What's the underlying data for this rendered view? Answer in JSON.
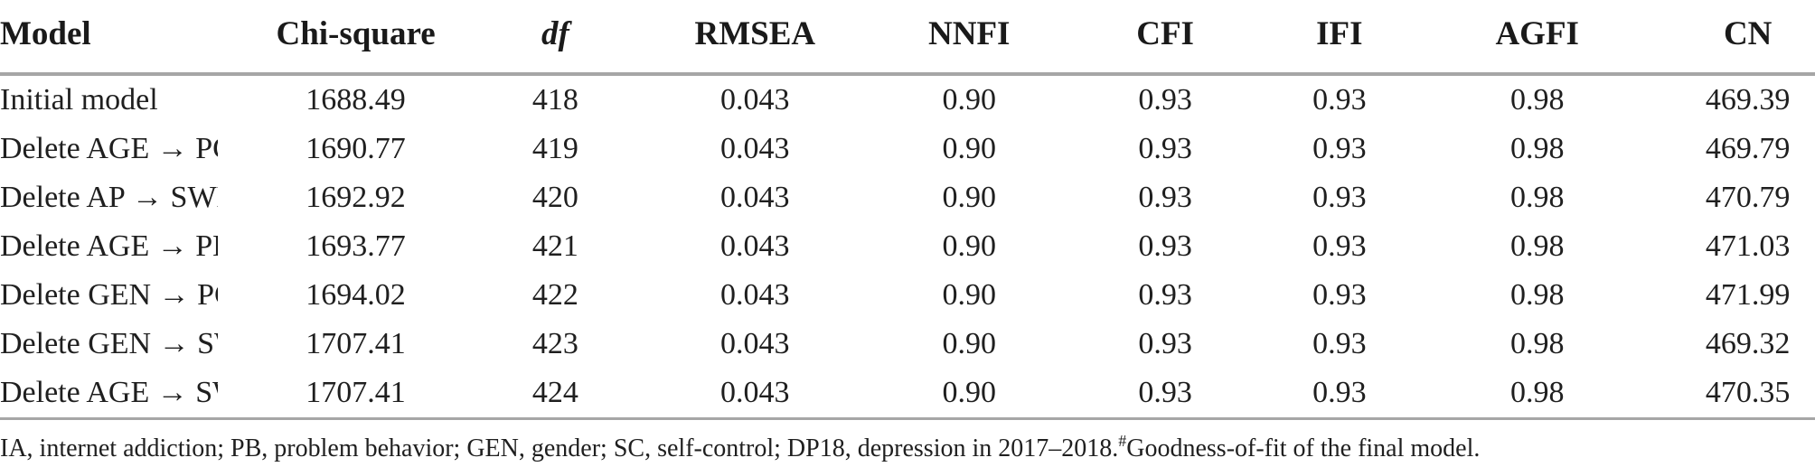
{
  "colors": {
    "rule": "#a6a6a6",
    "text": "#1f1f1f",
    "header": "#1a1a1a"
  },
  "table": {
    "columns": [
      {
        "label": "Model",
        "italic": false
      },
      {
        "label": "Chi-square",
        "italic": false
      },
      {
        "label": "df",
        "italic": true
      },
      {
        "label": "RMSEA",
        "italic": false
      },
      {
        "label": "NNFI",
        "italic": false
      },
      {
        "label": "CFI",
        "italic": false
      },
      {
        "label": "IFI",
        "italic": false
      },
      {
        "label": "AGFI",
        "italic": false
      },
      {
        "label": "CN",
        "italic": false
      }
    ],
    "rows": [
      [
        "Initial model",
        "1688.49",
        "418",
        "0.043",
        "0.90",
        "0.93",
        "0.93",
        "0.98",
        "469.39"
      ],
      [
        "Delete AGE → PCC",
        "1690.77",
        "419",
        "0.043",
        "0.90",
        "0.93",
        "0.93",
        "0.98",
        "469.79"
      ],
      [
        "Delete AP → SWB",
        "1692.92",
        "420",
        "0.043",
        "0.90",
        "0.93",
        "0.93",
        "0.98",
        "470.79"
      ],
      [
        "Delete AGE → PB",
        "1693.77",
        "421",
        "0.043",
        "0.90",
        "0.93",
        "0.93",
        "0.98",
        "471.03"
      ],
      [
        "Delete GEN → PCC",
        "1694.02",
        "422",
        "0.043",
        "0.90",
        "0.93",
        "0.93",
        "0.98",
        "471.99"
      ],
      [
        "Delete GEN → SWB",
        "1707.41",
        "423",
        "0.043",
        "0.90",
        "0.93",
        "0.93",
        "0.98",
        "469.32"
      ],
      [
        "Delete AGE → SWB #",
        "1707.41",
        "424",
        "0.043",
        "0.90",
        "0.93",
        "0.93",
        "0.98",
        "470.35"
      ]
    ],
    "column_widths_percent": [
      12,
      15.2,
      6.8,
      15.2,
      8.4,
      13.2,
      6,
      15.8,
      7.4
    ]
  },
  "footnote": {
    "text": "IA, internet addiction; PB, problem behavior; GEN, gender; SC, self-control; DP18, depression in 2017–2018.",
    "superscript": "#",
    "suffix": "Goodness-of-fit of the final model."
  }
}
